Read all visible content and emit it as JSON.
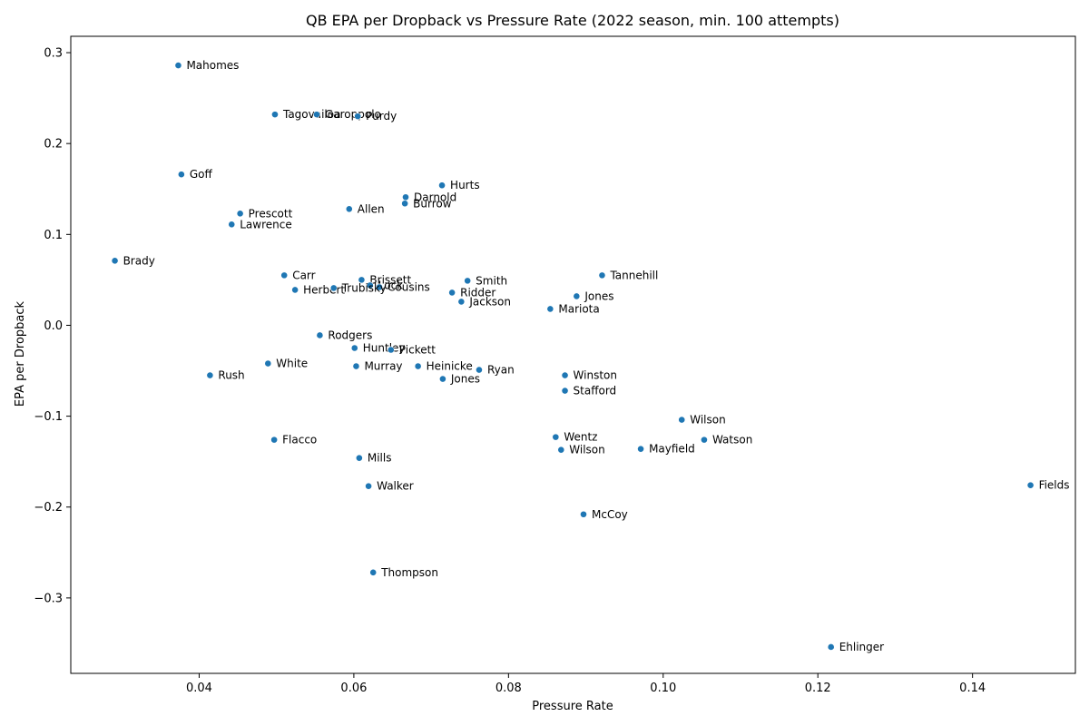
{
  "chart_data": {
    "type": "scatter",
    "title": "QB EPA per Dropback vs Pressure Rate (2022 season, min. 100 attempts)",
    "xlabel": "Pressure Rate",
    "ylabel": "EPA per Dropback",
    "xlim": [
      0.0234,
      0.1533
    ],
    "ylim": [
      -0.383,
      0.318
    ],
    "xticks": [
      0.04,
      0.06,
      0.08,
      0.1,
      0.12,
      0.14
    ],
    "xtick_labels": [
      "0.04",
      "0.06",
      "0.08",
      "0.10",
      "0.12",
      "0.14"
    ],
    "yticks": [
      -0.3,
      -0.2,
      -0.1,
      0.0,
      0.1,
      0.2,
      0.3
    ],
    "ytick_labels": [
      "−0.3",
      "−0.2",
      "−0.1",
      "0.0",
      "0.1",
      "0.2",
      "0.3"
    ],
    "grid": false,
    "marker_color": "#1f77b4",
    "points": [
      {
        "label": "Mahomes",
        "x": 0.0373,
        "y": 0.286
      },
      {
        "label": "Tagovailoa",
        "x": 0.0498,
        "y": 0.232
      },
      {
        "label": "Garoppolo",
        "x": 0.0552,
        "y": 0.232
      },
      {
        "label": "Purdy",
        "x": 0.0605,
        "y": 0.23
      },
      {
        "label": "Goff",
        "x": 0.0377,
        "y": 0.166
      },
      {
        "label": "Hurts",
        "x": 0.0714,
        "y": 0.154
      },
      {
        "label": "Darnold",
        "x": 0.0667,
        "y": 0.141
      },
      {
        "label": "Burrow",
        "x": 0.0666,
        "y": 0.134
      },
      {
        "label": "Allen",
        "x": 0.0594,
        "y": 0.128
      },
      {
        "label": "Prescott",
        "x": 0.0453,
        "y": 0.123
      },
      {
        "label": "Lawrence",
        "x": 0.0442,
        "y": 0.111
      },
      {
        "label": "Brady",
        "x": 0.0291,
        "y": 0.071
      },
      {
        "label": "Carr",
        "x": 0.051,
        "y": 0.055
      },
      {
        "label": "Brissett",
        "x": 0.061,
        "y": 0.05
      },
      {
        "label": "Lock",
        "x": 0.0621,
        "y": 0.044
      },
      {
        "label": "Cousins",
        "x": 0.0633,
        "y": 0.042
      },
      {
        "label": "Smith",
        "x": 0.0747,
        "y": 0.049
      },
      {
        "label": "Tannehill",
        "x": 0.0921,
        "y": 0.055
      },
      {
        "label": "Herbert",
        "x": 0.0524,
        "y": 0.039
      },
      {
        "label": "Trubisky",
        "x": 0.0574,
        "y": 0.041
      },
      {
        "label": "Ridder",
        "x": 0.0727,
        "y": 0.036
      },
      {
        "label": "Jones",
        "x": 0.0888,
        "y": 0.032
      },
      {
        "label": "Jackson",
        "x": 0.0739,
        "y": 0.026
      },
      {
        "label": "Mariota",
        "x": 0.0854,
        "y": 0.018
      },
      {
        "label": "Rodgers",
        "x": 0.0556,
        "y": -0.011
      },
      {
        "label": "Huntley",
        "x": 0.0601,
        "y": -0.025
      },
      {
        "label": "Pickett",
        "x": 0.0648,
        "y": -0.027
      },
      {
        "label": "White",
        "x": 0.0489,
        "y": -0.042
      },
      {
        "label": "Murray",
        "x": 0.0603,
        "y": -0.045
      },
      {
        "label": "Heinicke",
        "x": 0.0683,
        "y": -0.045
      },
      {
        "label": "Ryan",
        "x": 0.0762,
        "y": -0.049
      },
      {
        "label": "Rush",
        "x": 0.0414,
        "y": -0.055
      },
      {
        "label": "Jones",
        "x": 0.0715,
        "y": -0.059
      },
      {
        "label": "Winston",
        "x": 0.0873,
        "y": -0.055
      },
      {
        "label": "Stafford",
        "x": 0.0873,
        "y": -0.072
      },
      {
        "label": "Wilson",
        "x": 0.1024,
        "y": -0.104
      },
      {
        "label": "Flacco",
        "x": 0.0497,
        "y": -0.126
      },
      {
        "label": "Wentz",
        "x": 0.0861,
        "y": -0.123
      },
      {
        "label": "Watson",
        "x": 0.1053,
        "y": -0.126
      },
      {
        "label": "Wilson",
        "x": 0.0868,
        "y": -0.137
      },
      {
        "label": "Mayfield",
        "x": 0.0971,
        "y": -0.136
      },
      {
        "label": "Mills",
        "x": 0.0607,
        "y": -0.146
      },
      {
        "label": "Walker",
        "x": 0.0619,
        "y": -0.177
      },
      {
        "label": "Fields",
        "x": 0.1475,
        "y": -0.176
      },
      {
        "label": "McCoy",
        "x": 0.0897,
        "y": -0.208
      },
      {
        "label": "Thompson",
        "x": 0.0625,
        "y": -0.272
      },
      {
        "label": "Ehlinger",
        "x": 0.1217,
        "y": -0.354
      }
    ]
  }
}
